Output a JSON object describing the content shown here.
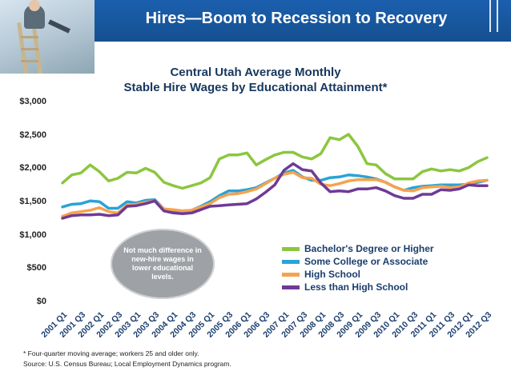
{
  "header": {
    "title": "Hires—Boom to Recession to Recovery"
  },
  "chart_data": {
    "type": "line",
    "title": "Central Utah Average Monthly",
    "subtitle": "Stable Hire Wages by Educational Attainment*",
    "xlabel": "",
    "ylabel": "",
    "ylim": [
      0,
      3000
    ],
    "yticks": [
      "$0",
      "$500",
      "$1,000",
      "$1,500",
      "$2,000",
      "$2,500",
      "$3,000"
    ],
    "ytick_values": [
      0,
      500,
      1000,
      1500,
      2000,
      2500,
      3000
    ],
    "categories": [
      "2001 Q1",
      "2001 Q2",
      "2001 Q3",
      "2001 Q4",
      "2002 Q1",
      "2002 Q2",
      "2002 Q3",
      "2002 Q4",
      "2003 Q1",
      "2003 Q2",
      "2003 Q3",
      "2003 Q4",
      "2004 Q1",
      "2004 Q2",
      "2004 Q3",
      "2004 Q4",
      "2005 Q1",
      "2005 Q2",
      "2005 Q3",
      "2005 Q4",
      "2006 Q1",
      "2006 Q2",
      "2006 Q3",
      "2006 Q4",
      "2007 Q1",
      "2007 Q2",
      "2007 Q3",
      "2007 Q4",
      "2008 Q1",
      "2008 Q2",
      "2008 Q3",
      "2008 Q4",
      "2009 Q1",
      "2009 Q2",
      "2009 Q3",
      "2009 Q4",
      "2010 Q1",
      "2010 Q2",
      "2010 Q3",
      "2010 Q4",
      "2011 Q1",
      "2011 Q2",
      "2011 Q3",
      "2011 Q4",
      "2012 Q1",
      "2012 Q2",
      "2012 Q3"
    ],
    "tick_labels": [
      "2001 Q1",
      "2001 Q3",
      "2002 Q1",
      "2002 Q3",
      "2003 Q1",
      "2003 Q3",
      "2004 Q1",
      "2004 Q3",
      "2005 Q1",
      "2005 Q3",
      "2006 Q1",
      "2006 Q3",
      "2007 Q1",
      "2007 Q3",
      "2008 Q1",
      "2008 Q3",
      "2009 Q1",
      "2009 Q3",
      "2010 Q1",
      "2010 Q3",
      "2011 Q1",
      "2011 Q3",
      "2012 Q1",
      "2012 Q3"
    ],
    "series": [
      {
        "name": "Bachelor's Degree or Higher",
        "color": "#8cc63f",
        "values": [
          1790,
          1910,
          1940,
          2060,
          1960,
          1820,
          1860,
          1950,
          1940,
          2010,
          1950,
          1800,
          1750,
          1710,
          1750,
          1790,
          1870,
          2150,
          2210,
          2210,
          2240,
          2060,
          2140,
          2210,
          2250,
          2250,
          2180,
          2150,
          2230,
          2470,
          2440,
          2520,
          2340,
          2080,
          2060,
          1930,
          1850,
          1850,
          1850,
          1960,
          2000,
          1970,
          1990,
          1970,
          2020,
          2110,
          2170
        ]
      },
      {
        "name": "Some College or Associate",
        "color": "#29a3d6",
        "values": [
          1430,
          1470,
          1480,
          1520,
          1510,
          1410,
          1410,
          1510,
          1490,
          1530,
          1540,
          1400,
          1380,
          1370,
          1380,
          1440,
          1510,
          1600,
          1670,
          1670,
          1690,
          1720,
          1790,
          1860,
          1940,
          1980,
          1880,
          1830,
          1830,
          1870,
          1880,
          1910,
          1900,
          1880,
          1850,
          1800,
          1730,
          1680,
          1720,
          1740,
          1750,
          1760,
          1760,
          1760,
          1770,
          1800,
          1830
        ]
      },
      {
        "name": "High School",
        "color": "#f7a24d",
        "values": [
          1290,
          1340,
          1360,
          1380,
          1420,
          1360,
          1340,
          1460,
          1470,
          1500,
          1520,
          1400,
          1390,
          1370,
          1380,
          1430,
          1480,
          1570,
          1620,
          1630,
          1660,
          1700,
          1780,
          1860,
          1920,
          1950,
          1870,
          1860,
          1770,
          1750,
          1780,
          1820,
          1840,
          1840,
          1840,
          1800,
          1730,
          1680,
          1670,
          1720,
          1730,
          1740,
          1720,
          1730,
          1790,
          1820,
          1830
        ]
      },
      {
        "name": "Less than High School",
        "color": "#6f3a96",
        "values": [
          1260,
          1300,
          1310,
          1310,
          1320,
          1300,
          1310,
          1440,
          1450,
          1480,
          1520,
          1370,
          1340,
          1330,
          1340,
          1390,
          1440,
          1450,
          1460,
          1470,
          1480,
          1550,
          1650,
          1760,
          1980,
          2080,
          1990,
          1970,
          1790,
          1660,
          1670,
          1660,
          1700,
          1700,
          1720,
          1670,
          1600,
          1560,
          1560,
          1620,
          1620,
          1690,
          1680,
          1700,
          1760,
          1750,
          1750
        ]
      }
    ],
    "annotation": "Not much difference in new-hire wages in lower educational levels.",
    "legend_position": "bottom-right"
  },
  "footnotes": {
    "note": "* Four-quarter moving average; workers 25 and older only.",
    "source": "Source: U.S. Census Bureau; Local Employment Dynamics program."
  }
}
